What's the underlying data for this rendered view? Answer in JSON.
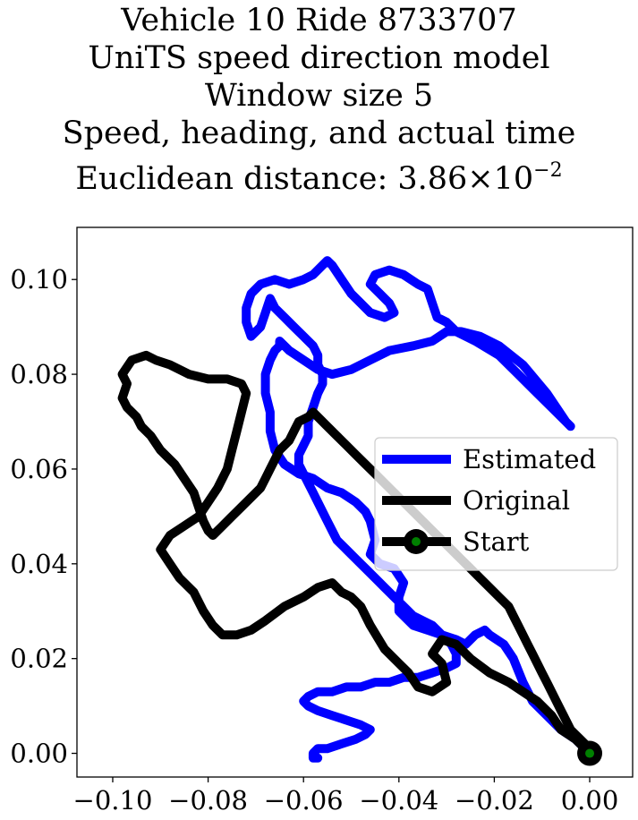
{
  "chart_data": {
    "type": "line",
    "title_lines": [
      "Vehicle 10 Ride 8733707",
      "UniTS speed direction model",
      "Window size 5",
      "Speed, heading, and actual time"
    ],
    "title_distance_prefix": "Euclidean distance: 3.86×10",
    "title_distance_exponent": "−2",
    "xlim": [
      -0.1075,
      0.009
    ],
    "ylim": [
      -0.005,
      0.111
    ],
    "xticks": [
      -0.1,
      -0.08,
      -0.06,
      -0.04,
      -0.02,
      0.0
    ],
    "yticks": [
      0.0,
      0.02,
      0.04,
      0.06,
      0.08,
      0.1
    ],
    "xtick_labels": [
      "−0.10",
      "−0.08",
      "−0.06",
      "−0.04",
      "−0.02",
      "0.00"
    ],
    "ytick_labels": [
      "0.00",
      "0.02",
      "0.04",
      "0.06",
      "0.08",
      "0.10"
    ],
    "grid": false,
    "legend_position": "center-right",
    "series": [
      {
        "name": "Estimated",
        "color": "#0000ff",
        "x": [
          0.0,
          -0.003,
          -0.006,
          -0.009,
          -0.012,
          -0.014,
          -0.016,
          -0.018,
          -0.021,
          -0.022,
          -0.024,
          -0.026,
          -0.028,
          -0.031,
          -0.034,
          -0.037,
          -0.04,
          -0.04,
          -0.039,
          -0.041,
          -0.044,
          -0.046,
          -0.045,
          -0.046,
          -0.047,
          -0.049,
          -0.052,
          -0.055,
          -0.058,
          -0.061,
          -0.064,
          -0.066,
          -0.067,
          -0.067,
          -0.068,
          -0.068,
          -0.067,
          -0.066,
          -0.065,
          -0.065,
          -0.063,
          -0.06,
          -0.057,
          -0.054,
          -0.05,
          -0.046,
          -0.042,
          -0.037,
          -0.033,
          -0.03,
          -0.027,
          -0.023,
          -0.019,
          -0.014,
          -0.009,
          -0.005,
          -0.004,
          -0.005,
          -0.008,
          -0.011,
          -0.015,
          -0.019,
          -0.024,
          -0.028,
          -0.03,
          -0.032,
          -0.033,
          -0.034,
          -0.036,
          -0.039,
          -0.042,
          -0.045,
          -0.046,
          -0.044,
          -0.042,
          -0.041,
          -0.043,
          -0.046,
          -0.048,
          -0.05,
          -0.052,
          -0.054,
          -0.055,
          -0.056,
          -0.058,
          -0.06,
          -0.063,
          -0.066,
          -0.069,
          -0.071,
          -0.072,
          -0.072,
          -0.071,
          -0.069,
          -0.068,
          -0.067,
          -0.066,
          -0.064,
          -0.062,
          -0.06,
          -0.058,
          -0.057,
          -0.057,
          -0.056,
          -0.056,
          -0.057,
          -0.058,
          -0.059,
          -0.059,
          -0.06,
          -0.061,
          -0.061,
          -0.06,
          -0.059,
          -0.058,
          -0.057,
          -0.056,
          -0.055,
          -0.054,
          -0.053,
          -0.051,
          -0.049,
          -0.047,
          -0.045,
          -0.043,
          -0.041,
          -0.039,
          -0.037,
          -0.035,
          -0.033,
          -0.031,
          -0.029,
          -0.028,
          -0.028,
          -0.03,
          -0.033,
          -0.036,
          -0.039,
          -0.042,
          -0.045,
          -0.048,
          -0.051,
          -0.054,
          -0.057,
          -0.059,
          -0.06,
          -0.059,
          -0.057,
          -0.054,
          -0.051,
          -0.048,
          -0.046,
          -0.047,
          -0.049,
          -0.052,
          -0.055,
          -0.057,
          -0.058,
          -0.058,
          -0.057
        ],
        "y": [
          0.0,
          0.003,
          0.005,
          0.008,
          0.011,
          0.015,
          0.02,
          0.023,
          0.025,
          0.026,
          0.025,
          0.023,
          0.024,
          0.025,
          0.026,
          0.027,
          0.03,
          0.033,
          0.036,
          0.039,
          0.04,
          0.042,
          0.045,
          0.049,
          0.051,
          0.053,
          0.055,
          0.056,
          0.058,
          0.059,
          0.061,
          0.064,
          0.068,
          0.072,
          0.076,
          0.08,
          0.083,
          0.085,
          0.086,
          0.087,
          0.085,
          0.083,
          0.081,
          0.08,
          0.081,
          0.083,
          0.085,
          0.086,
          0.087,
          0.089,
          0.089,
          0.088,
          0.086,
          0.082,
          0.076,
          0.07,
          0.069,
          0.07,
          0.073,
          0.076,
          0.08,
          0.084,
          0.087,
          0.089,
          0.091,
          0.092,
          0.095,
          0.098,
          0.099,
          0.101,
          0.102,
          0.101,
          0.099,
          0.097,
          0.095,
          0.093,
          0.092,
          0.093,
          0.095,
          0.097,
          0.1,
          0.103,
          0.104,
          0.103,
          0.101,
          0.1,
          0.099,
          0.1,
          0.099,
          0.097,
          0.094,
          0.091,
          0.088,
          0.09,
          0.093,
          0.096,
          0.094,
          0.092,
          0.09,
          0.088,
          0.086,
          0.084,
          0.082,
          0.08,
          0.078,
          0.076,
          0.073,
          0.07,
          0.067,
          0.065,
          0.063,
          0.061,
          0.059,
          0.057,
          0.055,
          0.053,
          0.051,
          0.049,
          0.047,
          0.045,
          0.043,
          0.041,
          0.039,
          0.037,
          0.035,
          0.033,
          0.031,
          0.029,
          0.028,
          0.027,
          0.025,
          0.023,
          0.021,
          0.019,
          0.018,
          0.017,
          0.016,
          0.016,
          0.015,
          0.015,
          0.014,
          0.014,
          0.013,
          0.013,
          0.012,
          0.011,
          0.01,
          0.009,
          0.008,
          0.007,
          0.006,
          0.005,
          0.004,
          0.003,
          0.002,
          0.001,
          0.001,
          0.0,
          -0.001,
          -0.001
        ],
        "trim": 60
      },
      {
        "name": "Original",
        "color": "#000000",
        "x": [
          0.0,
          -0.003,
          -0.006,
          -0.008,
          -0.011,
          -0.014,
          -0.017,
          -0.021,
          -0.025,
          -0.028,
          -0.031,
          -0.033,
          -0.031,
          -0.03,
          -0.033,
          -0.036,
          -0.038,
          -0.04,
          -0.043,
          -0.046,
          -0.048,
          -0.05,
          -0.052,
          -0.054,
          -0.057,
          -0.06,
          -0.064,
          -0.068,
          -0.071,
          -0.074,
          -0.077,
          -0.079,
          -0.081,
          -0.083,
          -0.086,
          -0.088,
          -0.09,
          -0.088,
          -0.085,
          -0.082,
          -0.08,
          -0.078,
          -0.076,
          -0.075,
          -0.074,
          -0.073,
          -0.072,
          -0.073,
          -0.076,
          -0.08,
          -0.084,
          -0.088,
          -0.091,
          -0.093,
          -0.096,
          -0.098,
          -0.097,
          -0.098,
          -0.097,
          -0.095,
          -0.094,
          -0.092,
          -0.09,
          -0.087,
          -0.085,
          -0.083,
          -0.082,
          -0.081,
          -0.08,
          -0.079,
          -0.077,
          -0.075,
          -0.073,
          -0.071,
          -0.069,
          -0.068,
          -0.067,
          -0.066,
          -0.065,
          -0.063,
          -0.062,
          -0.061,
          -0.059,
          -0.058,
          -0.057,
          -0.055,
          -0.053,
          -0.051,
          -0.049,
          -0.047,
          -0.045,
          -0.043,
          -0.041,
          -0.039,
          -0.037,
          -0.035,
          -0.033,
          -0.031,
          -0.029,
          -0.027,
          -0.025,
          -0.023,
          -0.021,
          -0.019,
          -0.017,
          -0.016,
          -0.015,
          -0.014,
          -0.013,
          -0.012,
          -0.011,
          -0.01,
          -0.009,
          -0.008,
          -0.007,
          -0.006,
          -0.005,
          -0.004,
          -0.003,
          -0.002,
          -0.001,
          0.0
        ],
        "y": [
          0.0,
          0.003,
          0.005,
          0.008,
          0.011,
          0.013,
          0.015,
          0.017,
          0.02,
          0.023,
          0.024,
          0.021,
          0.019,
          0.015,
          0.013,
          0.014,
          0.017,
          0.019,
          0.022,
          0.027,
          0.031,
          0.033,
          0.034,
          0.036,
          0.035,
          0.033,
          0.031,
          0.028,
          0.026,
          0.025,
          0.025,
          0.027,
          0.03,
          0.034,
          0.037,
          0.04,
          0.043,
          0.046,
          0.048,
          0.05,
          0.053,
          0.056,
          0.06,
          0.064,
          0.068,
          0.072,
          0.076,
          0.078,
          0.079,
          0.079,
          0.08,
          0.082,
          0.083,
          0.084,
          0.083,
          0.08,
          0.078,
          0.075,
          0.073,
          0.071,
          0.069,
          0.067,
          0.064,
          0.061,
          0.058,
          0.055,
          0.052,
          0.049,
          0.047,
          0.046,
          0.048,
          0.05,
          0.052,
          0.054,
          0.056,
          0.058,
          0.06,
          0.062,
          0.064,
          0.066,
          0.068,
          0.07,
          0.071,
          0.072,
          0.071,
          0.069,
          0.067,
          0.065,
          0.063,
          0.061,
          0.059,
          0.057,
          0.055,
          0.053,
          0.051,
          0.049,
          0.047,
          0.045,
          0.043,
          0.041,
          0.039,
          0.037,
          0.035,
          0.033,
          0.031,
          0.029,
          0.027,
          0.025,
          0.023,
          0.021,
          0.019,
          0.017,
          0.015,
          0.013,
          0.011,
          0.009,
          0.007,
          0.005,
          0.004,
          0.003,
          0.002,
          0.001
        ],
        "trim": 60
      }
    ],
    "start_point": {
      "name": "Start",
      "x": 0.0,
      "y": 0.0,
      "marker_fill": "#008000",
      "marker_edge": "#000000"
    },
    "legend": [
      {
        "label": "Estimated",
        "color": "#0000ff",
        "kind": "line"
      },
      {
        "label": "Original",
        "color": "#000000",
        "kind": "line"
      },
      {
        "label": "Start",
        "color": "#000000",
        "kind": "marker",
        "marker_fill": "#008000"
      }
    ]
  }
}
